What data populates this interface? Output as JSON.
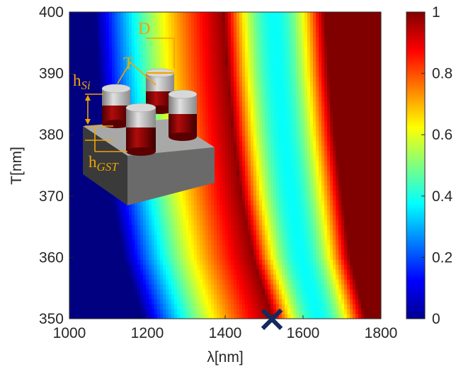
{
  "chart_data": {
    "type": "heatmap",
    "title": "",
    "xlabel": "λ[nm]",
    "ylabel": "T[nm]",
    "xlim": [
      1000,
      1800
    ],
    "ylim": [
      350,
      400
    ],
    "xticks": [
      "1000",
      "1200",
      "1400",
      "1600",
      "1800"
    ],
    "xtick_values": [
      1000,
      1200,
      1400,
      1600,
      1800
    ],
    "yticks": [
      "350",
      "360",
      "370",
      "380",
      "390",
      "400"
    ],
    "ytick_values": [
      350,
      360,
      370,
      380,
      390,
      400
    ],
    "colorbar": {
      "min": 0,
      "max": 1,
      "ticks": [
        "0",
        "0.2",
        "0.4",
        "0.6",
        "0.8",
        "1"
      ],
      "tick_values": [
        0,
        0.2,
        0.4,
        0.6,
        0.8,
        1
      ],
      "colormap": "jet"
    },
    "features": {
      "first_resonance_ridge": [
        {
          "T": 350,
          "lambda": 1520
        },
        {
          "T": 360,
          "lambda": 1470
        },
        {
          "T": 370,
          "lambda": 1440
        },
        {
          "T": 380,
          "lambda": 1420
        },
        {
          "T": 390,
          "lambda": 1405
        },
        {
          "T": 400,
          "lambda": 1395
        }
      ],
      "second_resonance_ridge": [
        {
          "T": 350,
          "lambda": 1760
        },
        {
          "T": 360,
          "lambda": 1720
        },
        {
          "T": 370,
          "lambda": 1700
        },
        {
          "T": 380,
          "lambda": 1680
        },
        {
          "T": 390,
          "lambda": 1665
        },
        {
          "T": 400,
          "lambda": 1655
        }
      ]
    },
    "marker": {
      "symbol": "×",
      "x": 1520,
      "y": 350,
      "color": "#132a5e"
    },
    "inset": {
      "description": "GST/Si nanopillar unit cell",
      "labels": {
        "D": "D",
        "T": "T",
        "h_si_base": "h",
        "h_si_sub": "Si",
        "h_gst_base": "h",
        "h_gst_sub": "GST"
      },
      "label_color": "#f0a500"
    }
  }
}
